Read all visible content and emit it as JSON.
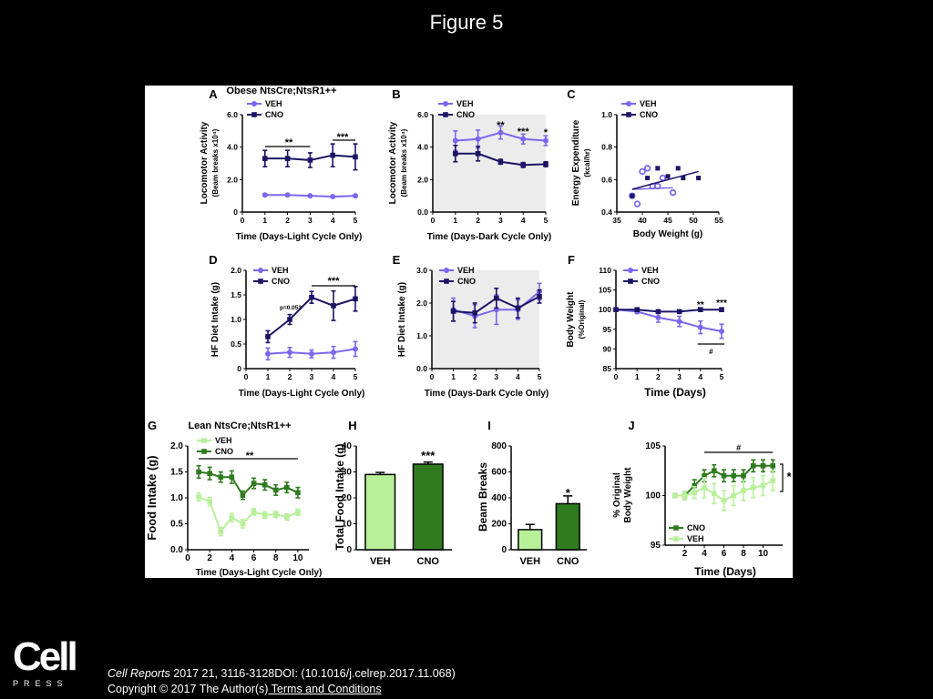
{
  "slide": {
    "title": "Figure 5",
    "citation": {
      "journal": "Cell Reports",
      "ref": " 2017 21, 3116-3128DOI: (10.1016/j.celrep.2017.11.068)",
      "copyright": "Copyright © 2017 The Author(s)",
      "terms_link": " Terms and Conditions"
    },
    "logo": {
      "word": "Cell",
      "sub": "PRESS"
    }
  },
  "colors": {
    "veh_obese": "#7b68ee",
    "cno_obese": "#1c1464",
    "veh_lean": "#b8f09a",
    "cno_lean": "#2f7a1f",
    "shade": "#ececec"
  },
  "chart_data": [
    {
      "panel": "A",
      "type": "line",
      "title": "Obese NtsCre;NtsR1++",
      "xlabel": "Time (Days-Light Cycle Only)",
      "ylabel": "Locomotor Activity",
      "ylabel2": "(Beam breaks x10⁴)",
      "xlim": [
        0,
        5
      ],
      "ylim": [
        0,
        6
      ],
      "xticks": [
        "0",
        "1",
        "2",
        "3",
        "4",
        "5"
      ],
      "yticks": [
        "0",
        "2.0",
        "4.0",
        "6.0"
      ],
      "x": [
        1,
        2,
        3,
        4,
        5
      ],
      "series": [
        {
          "name": "VEH",
          "values": [
            1.05,
            1.05,
            1.0,
            0.95,
            1.0
          ],
          "err": [
            0.05,
            0.05,
            0.05,
            0.05,
            0.05
          ]
        },
        {
          "name": "CNO",
          "values": [
            3.3,
            3.3,
            3.2,
            3.5,
            3.4
          ],
          "err": [
            0.5,
            0.5,
            0.45,
            0.7,
            0.8
          ]
        }
      ],
      "annotations": [
        "**",
        "***"
      ]
    },
    {
      "panel": "B",
      "type": "line",
      "xlabel": "Time (Days-Dark Cycle Only)",
      "ylabel": "Locomotor Activity",
      "ylabel2": "(Beam breaks x10⁴)",
      "xlim": [
        0,
        5
      ],
      "ylim": [
        0,
        6
      ],
      "xticks": [
        "0",
        "1",
        "2",
        "3",
        "4",
        "5"
      ],
      "yticks": [
        "0.0",
        "2.0",
        "4.0",
        "6.0"
      ],
      "x": [
        1,
        2,
        3,
        4,
        5
      ],
      "series": [
        {
          "name": "VEH",
          "values": [
            4.4,
            4.5,
            4.9,
            4.5,
            4.4
          ],
          "err": [
            0.6,
            0.55,
            0.4,
            0.3,
            0.3
          ]
        },
        {
          "name": "CNO",
          "values": [
            3.6,
            3.6,
            3.1,
            2.9,
            2.95
          ],
          "err": [
            0.5,
            0.45,
            0.15,
            0.15,
            0.15
          ]
        }
      ],
      "annotations": [
        "**",
        "***",
        "*"
      ]
    },
    {
      "panel": "C",
      "type": "scatter",
      "xlabel": "Body Weight (g)",
      "ylabel": "Energy Expenditure",
      "ylabel2": "(kcal/hr)",
      "xlim": [
        35,
        55
      ],
      "ylim": [
        0.4,
        1.0
      ],
      "xticks": [
        "35",
        "40",
        "45",
        "50",
        "55"
      ],
      "yticks": [
        "0.4",
        "0.6",
        "0.8",
        "1.0"
      ],
      "series": [
        {
          "name": "VEH",
          "points": [
            [
              38,
              0.5
            ],
            [
              39,
              0.45
            ],
            [
              40,
              0.65
            ],
            [
              41,
              0.67
            ],
            [
              42,
              0.56
            ],
            [
              43,
              0.56
            ],
            [
              44,
              0.61
            ],
            [
              46,
              0.52
            ]
          ]
        },
        {
          "name": "CNO",
          "points": [
            [
              38,
              0.5
            ],
            [
              41,
              0.61
            ],
            [
              43,
              0.67
            ],
            [
              45,
              0.62
            ],
            [
              47,
              0.67
            ],
            [
              48,
              0.61
            ],
            [
              51,
              0.61
            ]
          ]
        }
      ]
    },
    {
      "panel": "D",
      "type": "line",
      "xlabel": "Time (Days-Light Cycle Only)",
      "ylabel": "HF Diet Intake (g)",
      "xlim": [
        0,
        5
      ],
      "ylim": [
        0,
        2
      ],
      "xticks": [
        "0",
        "1",
        "2",
        "3",
        "4",
        "5"
      ],
      "yticks": [
        "0",
        "0.5",
        "1.0",
        "1.5",
        "2.0"
      ],
      "x": [
        1,
        2,
        3,
        4,
        5
      ],
      "series": [
        {
          "name": "VEH",
          "values": [
            0.3,
            0.33,
            0.3,
            0.33,
            0.4
          ],
          "err": [
            0.12,
            0.1,
            0.08,
            0.12,
            0.15
          ]
        },
        {
          "name": "CNO",
          "values": [
            0.65,
            1.0,
            1.45,
            1.28,
            1.42
          ],
          "err": [
            0.12,
            0.1,
            0.12,
            0.3,
            0.25
          ]
        }
      ],
      "annotations": [
        "p=0.053",
        "***"
      ]
    },
    {
      "panel": "E",
      "type": "line",
      "xlabel": "Time (Days-Dark Cycle Only)",
      "ylabel": "HF Diet Intake (g)",
      "xlim": [
        0,
        5
      ],
      "ylim": [
        0,
        3
      ],
      "xticks": [
        "0",
        "1",
        "2",
        "3",
        "4",
        "5"
      ],
      "yticks": [
        "0.0",
        "1.0",
        "2.0",
        "3.0"
      ],
      "x": [
        1,
        2,
        3,
        4,
        5
      ],
      "series": [
        {
          "name": "VEH",
          "values": [
            1.8,
            1.6,
            1.8,
            1.8,
            2.35
          ],
          "err": [
            0.35,
            0.35,
            0.45,
            0.3,
            0.25
          ]
        },
        {
          "name": "CNO",
          "values": [
            1.75,
            1.7,
            2.15,
            1.85,
            2.2
          ],
          "err": [
            0.3,
            0.3,
            0.3,
            0.3,
            0.2
          ]
        }
      ]
    },
    {
      "panel": "F",
      "type": "line",
      "xlabel": "Time (Days)",
      "ylabel": "Body Weight",
      "ylabel2": "(%Original)",
      "xlim": [
        0,
        5
      ],
      "ylim": [
        85,
        110
      ],
      "xticks": [
        "0",
        "1",
        "2",
        "3",
        "4",
        "5"
      ],
      "yticks": [
        "85",
        "90",
        "95",
        "100",
        "105",
        "110"
      ],
      "x": [
        0,
        1,
        2,
        3,
        4,
        5
      ],
      "series": [
        {
          "name": "VEH",
          "values": [
            100,
            99.5,
            98,
            97,
            95.5,
            94.5
          ],
          "err": [
            0,
            0.5,
            1.2,
            1.3,
            1.6,
            1.8
          ]
        },
        {
          "name": "CNO",
          "values": [
            100,
            100,
            99.5,
            99.5,
            100,
            100
          ],
          "err": [
            0,
            0.4,
            0.4,
            0.4,
            0.3,
            0.3
          ]
        }
      ],
      "annotations": [
        "**",
        "***",
        "#"
      ]
    },
    {
      "panel": "G",
      "type": "line",
      "title": "Lean NtsCre;NtsR1++",
      "xlabel": "Time (Days-Light Cycle Only)",
      "ylabel": "Food Intake (g)",
      "xlim": [
        0,
        11
      ],
      "ylim": [
        0,
        2
      ],
      "xticks": [
        "0",
        "2",
        "4",
        "6",
        "8",
        "10"
      ],
      "yticks": [
        "0.0",
        "0.5",
        "1.0",
        "1.5",
        "2.0"
      ],
      "x": [
        1,
        2,
        3,
        4,
        5,
        6,
        7,
        8,
        9,
        10
      ],
      "series": [
        {
          "name": "VEH",
          "values": [
            1.02,
            0.93,
            0.35,
            0.62,
            0.5,
            0.73,
            0.67,
            0.68,
            0.63,
            0.72
          ],
          "err": [
            0.08,
            0.08,
            0.08,
            0.08,
            0.08,
            0.06,
            0.06,
            0.06,
            0.06,
            0.06
          ]
        },
        {
          "name": "CNO",
          "values": [
            1.5,
            1.47,
            1.4,
            1.4,
            1.05,
            1.28,
            1.25,
            1.15,
            1.2,
            1.1
          ],
          "err": [
            0.12,
            0.12,
            0.1,
            0.12,
            0.08,
            0.1,
            0.1,
            0.1,
            0.1,
            0.1
          ]
        }
      ],
      "annotations": [
        "**"
      ]
    },
    {
      "panel": "H",
      "type": "bar",
      "ylabel": "Total Food Intake (g)",
      "ylim": [
        0,
        40
      ],
      "yticks": [
        "0",
        "10",
        "20",
        "30",
        "40"
      ],
      "categories": [
        "VEH",
        "CNO"
      ],
      "values": [
        29,
        33
      ],
      "err": [
        0.8,
        0.8
      ],
      "annotations": [
        "***"
      ]
    },
    {
      "panel": "I",
      "type": "bar",
      "ylabel": "Beam Breaks",
      "ylim": [
        0,
        800
      ],
      "yticks": [
        "0",
        "200",
        "400",
        "600",
        "800"
      ],
      "categories": [
        "VEH",
        "CNO"
      ],
      "values": [
        155,
        355
      ],
      "err": [
        40,
        60
      ],
      "annotations": [
        "*"
      ]
    },
    {
      "panel": "J",
      "type": "line",
      "xlabel": "Time (Days)",
      "ylabel": "% Original",
      "ylabel2": "Body Weight",
      "xlim": [
        0,
        12
      ],
      "ylim": [
        95,
        105
      ],
      "xticks": [
        "2",
        "4",
        "6",
        "8",
        "10"
      ],
      "yticks": [
        "95",
        "100",
        "105"
      ],
      "x": [
        1,
        2,
        3,
        4,
        5,
        6,
        7,
        8,
        9,
        10,
        11
      ],
      "series": [
        {
          "name": "CNO",
          "values": [
            100,
            100,
            101,
            102,
            102.5,
            102,
            102,
            102,
            103,
            103,
            103
          ],
          "err": [
            0,
            0.4,
            0.6,
            0.6,
            0.6,
            0.6,
            0.6,
            0.6,
            0.6,
            0.6,
            0.6
          ]
        },
        {
          "name": "VEH",
          "values": [
            100,
            100,
            100.3,
            100.8,
            100.2,
            99.5,
            100,
            100.5,
            100.8,
            101,
            101.5
          ],
          "err": [
            0,
            0.4,
            0.6,
            1,
            1,
            1,
            1,
            1,
            1,
            1,
            1
          ]
        }
      ],
      "annotations": [
        "#",
        "*"
      ]
    }
  ]
}
